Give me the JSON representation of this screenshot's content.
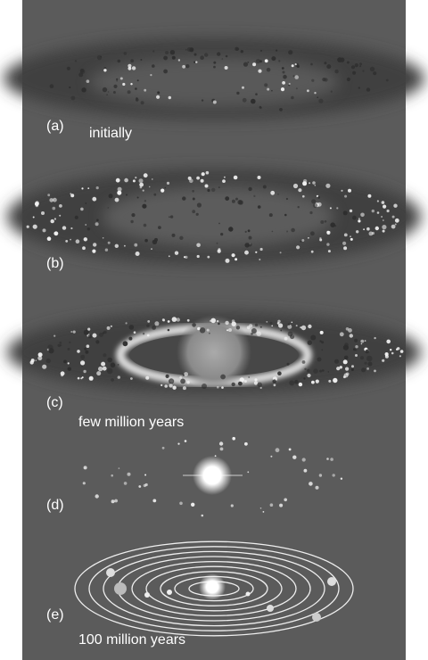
{
  "panels": [
    {
      "label": "(a)",
      "caption": "initially"
    },
    {
      "label": "(b)"
    },
    {
      "label": "(c)",
      "caption": "few million years"
    },
    {
      "label": "(d)"
    },
    {
      "label": "(e)",
      "caption": "100 million years"
    }
  ]
}
